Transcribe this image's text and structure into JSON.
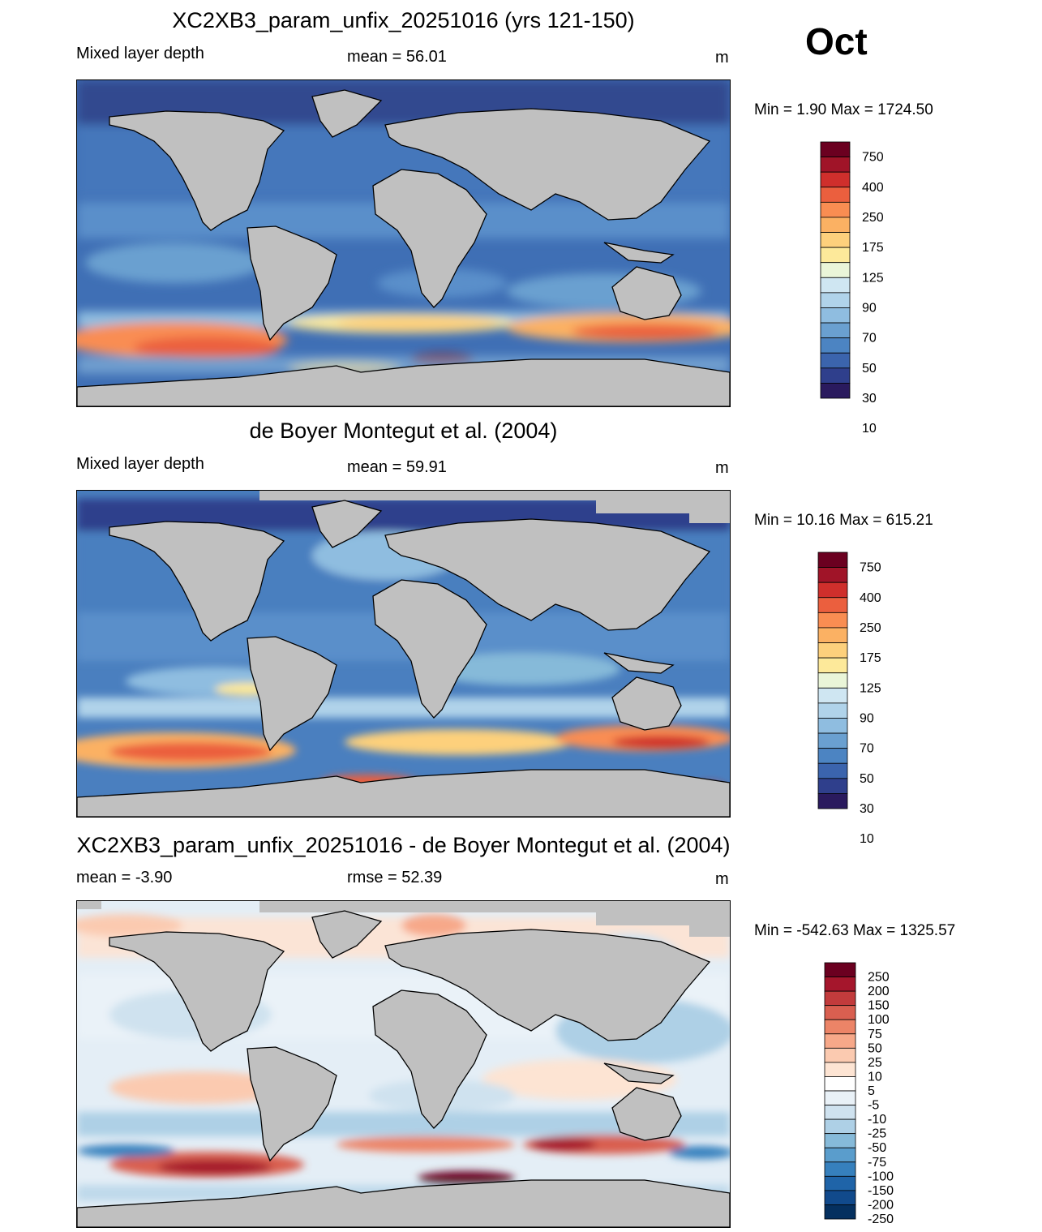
{
  "month": "Oct",
  "colors": {
    "land": "#c0c0c0",
    "seq_palette": [
      "#2a1a5e",
      "#2f3f8c",
      "#3b64ad",
      "#4c84c2",
      "#6aa0d0",
      "#8fbde0",
      "#b0d3ea",
      "#cfe6f2",
      "#eaf5d8",
      "#fde99a",
      "#fdd07c",
      "#fbb163",
      "#f98d52",
      "#eb5f3e",
      "#cf2f2c",
      "#a01428",
      "#6b0020"
    ],
    "div_palette": [
      "#05305f",
      "#114a8c",
      "#1f64a8",
      "#3680bd",
      "#5a9dcc",
      "#86bad9",
      "#aed0e6",
      "#cfe2ef",
      "#e9f1f7",
      "#ffffff",
      "#fde4d3",
      "#fbcab0",
      "#f7a889",
      "#ec8467",
      "#d95f50",
      "#c23b3c",
      "#a5162c",
      "#6b0020"
    ]
  },
  "panels": [
    {
      "title": "XC2XB3_param_unfix_20251016 (yrs 121-150)",
      "left_label": "Mixed layer depth",
      "center_label": "mean =  56.01",
      "units": "m",
      "minmax": "Min =   1.90 Max = 1724.50",
      "colorbar_labels": [
        "750",
        "400",
        "250",
        "175",
        "125",
        "90",
        "70",
        "50",
        "30",
        "10"
      ]
    },
    {
      "title": "de Boyer Montegut et al. (2004)",
      "left_label": "Mixed layer depth",
      "center_label": "mean =  59.91",
      "units": "m",
      "minmax": "Min =  10.16 Max = 615.21",
      "colorbar_labels": [
        "750",
        "400",
        "250",
        "175",
        "125",
        "90",
        "70",
        "50",
        "30",
        "10"
      ]
    },
    {
      "title": "XC2XB3_param_unfix_20251016 - de Boyer Montegut et al. (2004)",
      "left_label": "mean =  -3.90",
      "center_label": "rmse =  52.39",
      "units": "m",
      "minmax": "Min = -542.63 Max = 1325.57",
      "colorbar_labels": [
        "250",
        "200",
        "150",
        "100",
        "75",
        "50",
        "25",
        "10",
        "5",
        "-5",
        "-10",
        "-25",
        "-50",
        "-75",
        "-100",
        "-150",
        "-200",
        "-250"
      ]
    }
  ]
}
